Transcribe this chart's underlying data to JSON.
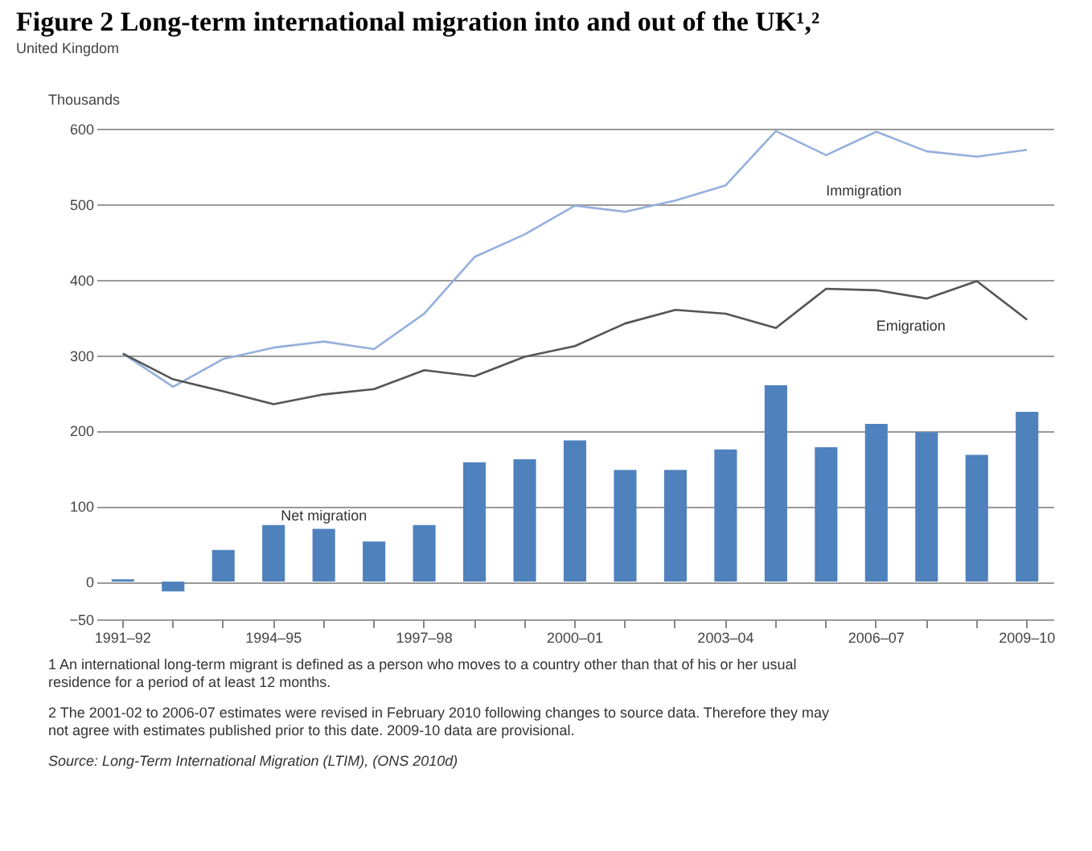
{
  "chart_data": {
    "type": "bar",
    "title": "Figure 2    Long-term international migration into and out of the UK¹,²",
    "subtitle": "United Kingdom",
    "ylabel": "Thousands",
    "categories": [
      "1991–92",
      null,
      null,
      "1994–95",
      null,
      null,
      "1997–98",
      null,
      null,
      "2000–01",
      null,
      null,
      "2003–04",
      null,
      null,
      "2006–07",
      null,
      null,
      "2009–10"
    ],
    "series": [
      {
        "name": "Net migration",
        "color": "#4f81bd",
        "values": [
          3,
          -13,
          42,
          75,
          70,
          53,
          75,
          158,
          162,
          187,
          148,
          148,
          175,
          260,
          178,
          209,
          198,
          168,
          225
        ]
      },
      {
        "name": "Immigration",
        "type": "line",
        "color": "#95b0dc",
        "values": [
          302,
          258,
          295,
          310,
          318,
          308,
          355,
          430,
          460,
          498,
          490,
          505,
          525,
          597,
          565,
          596,
          570,
          563,
          572
        ]
      },
      {
        "name": "Emigration",
        "type": "line",
        "color": "#555555",
        "values": [
          302,
          268,
          252,
          235,
          248,
          255,
          280,
          272,
          298,
          312,
          342,
          360,
          355,
          336,
          388,
          386,
          375,
          398,
          347
        ]
      }
    ],
    "ylim": [
      -50,
      600
    ],
    "yticks": [
      -50,
      0,
      100,
      200,
      300,
      400,
      500,
      600
    ],
    "grid": "y",
    "marker": "none",
    "line_style": "solid",
    "annotations": [
      "1 An international long-term migrant is defined as a person who moves to a country other than that of his or her usual residence for a period of at least 12 months.",
      "2 The 2001-02 to 2006-07 estimates were revised in February 2010 following changes to source data. Therefore they may not agree with estimates published prior to this date. 2009-10 data are provisional.",
      "Source: Long-Term International Migration (LTIM), (ONS 2010d)"
    ]
  }
}
